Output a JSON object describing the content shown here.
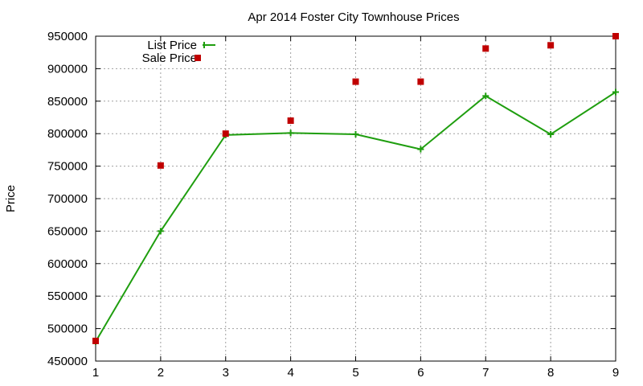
{
  "chart_data": {
    "type": "line",
    "title": "Apr 2014 Foster City Townhouse Prices",
    "xlabel": "",
    "ylabel": "Price",
    "x": [
      1,
      2,
      3,
      4,
      5,
      6,
      7,
      8,
      9
    ],
    "xlim": [
      1,
      9
    ],
    "ylim": [
      450000,
      950000
    ],
    "xticks": [
      1,
      2,
      3,
      4,
      5,
      6,
      7,
      8,
      9
    ],
    "yticks": [
      450000,
      500000,
      550000,
      600000,
      650000,
      700000,
      750000,
      800000,
      850000,
      900000,
      950000
    ],
    "grid": true,
    "legend_position": "top-left",
    "series": [
      {
        "name": "List Price",
        "style": "line+cross",
        "color": "#1f9e0f",
        "values": [
          480000,
          650000,
          798000,
          801000,
          799000,
          776000,
          858000,
          799000,
          864000
        ]
      },
      {
        "name": "Sale Price",
        "style": "square-points",
        "color": "#c00000",
        "values": [
          481000,
          751000,
          800000,
          820000,
          880000,
          880000,
          931000,
          936000,
          950000
        ]
      }
    ]
  }
}
